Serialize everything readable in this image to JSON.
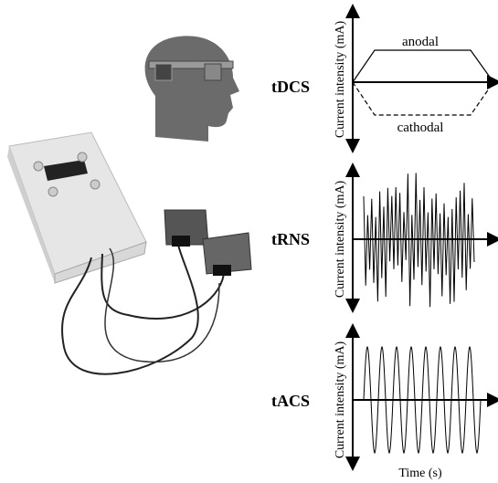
{
  "panels": [
    {
      "label": "tDCS",
      "y_axis_label": "Current intensity (mA)",
      "annotations": [
        "anodal",
        "cathodal"
      ]
    },
    {
      "label": "tRNS",
      "y_axis_label": "Current intensity (mA)"
    },
    {
      "label": "tACS",
      "y_axis_label": "Current intensity (mA)",
      "x_axis_label": "Time (s)"
    }
  ]
}
